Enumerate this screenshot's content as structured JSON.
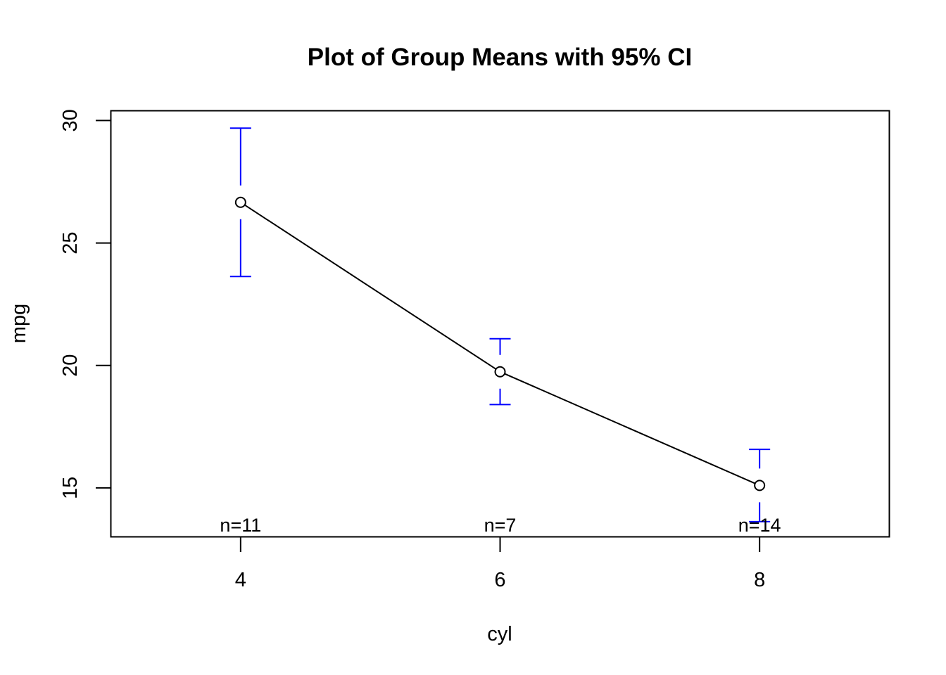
{
  "chart_data": {
    "type": "line",
    "title": "Plot of Group Means with 95% CI",
    "xlabel": "cyl",
    "ylabel": "mpg",
    "x": [
      "4",
      "6",
      "8"
    ],
    "xlim": [
      3,
      9
    ],
    "ylim": [
      13,
      30.4
    ],
    "xticks": [
      "4",
      "6",
      "8"
    ],
    "yticks": [
      "15",
      "20",
      "25",
      "30"
    ],
    "grid": false,
    "series": [
      {
        "values": [
          26.66,
          19.74,
          15.1
        ],
        "ci_lower": [
          23.63,
          18.4,
          13.62
        ],
        "ci_upper": [
          29.69,
          21.09,
          16.57
        ],
        "color": "#000000",
        "error_bar_color": "#0000ff",
        "marker": "open-circle"
      }
    ],
    "annotations": [
      "n=11",
      "n=7",
      "n=14"
    ]
  }
}
